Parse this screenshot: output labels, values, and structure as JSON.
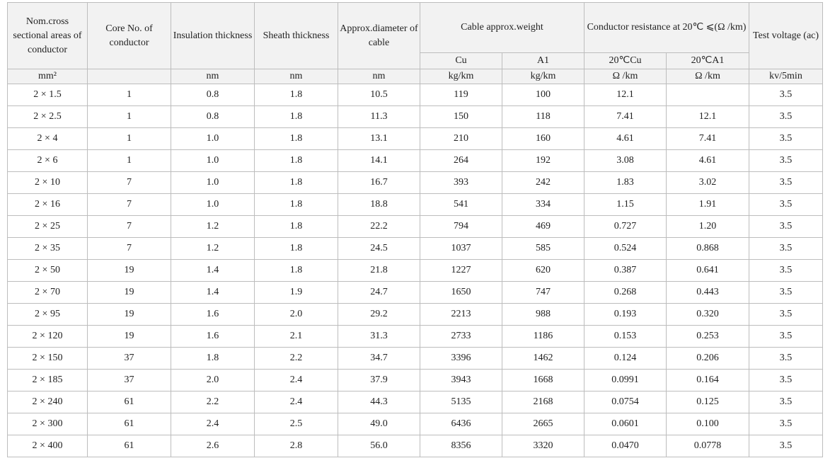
{
  "headers": {
    "size": "Nom.cross sectional areas of conductor",
    "core": "Core No. of conductor",
    "insulation": "Insulation thickness",
    "sheath": "Sheath thickness",
    "diameter": "Approx.diameter of cable",
    "weight": "Cable approx.weight",
    "resistance": "Conductor resistance at 20℃ ⩽(Ω /km)",
    "voltage": "Test voltage (ac)",
    "weight_cu": "Cu",
    "weight_al": "A1",
    "res_cu": "20℃Cu",
    "res_al": "20℃A1"
  },
  "units": {
    "size": "mm²",
    "core": "",
    "insulation": "nm",
    "sheath": "nm",
    "diameter": "nm",
    "weight_cu": "kg/km",
    "weight_al": "kg/km",
    "res_cu": "Ω /km",
    "res_al": "Ω /km",
    "voltage": "kv/5min"
  },
  "rows": [
    {
      "size": "2 × 1.5",
      "core": "1",
      "insulation": "0.8",
      "sheath": "1.8",
      "diameter": "10.5",
      "weight_cu": "119",
      "weight_al": "100",
      "res_cu": "12.1",
      "res_al": "",
      "voltage": "3.5"
    },
    {
      "size": "2 × 2.5",
      "core": "1",
      "insulation": "0.8",
      "sheath": "1.8",
      "diameter": "11.3",
      "weight_cu": "150",
      "weight_al": "118",
      "res_cu": "7.41",
      "res_al": "12.1",
      "voltage": "3.5"
    },
    {
      "size": "2 × 4",
      "core": "1",
      "insulation": "1.0",
      "sheath": "1.8",
      "diameter": "13.1",
      "weight_cu": "210",
      "weight_al": "160",
      "res_cu": "4.61",
      "res_al": "7.41",
      "voltage": "3.5"
    },
    {
      "size": "2 × 6",
      "core": "1",
      "insulation": "1.0",
      "sheath": "1.8",
      "diameter": "14.1",
      "weight_cu": "264",
      "weight_al": "192",
      "res_cu": "3.08",
      "res_al": "4.61",
      "voltage": "3.5"
    },
    {
      "size": "2 × 10",
      "core": "7",
      "insulation": "1.0",
      "sheath": "1.8",
      "diameter": "16.7",
      "weight_cu": "393",
      "weight_al": "242",
      "res_cu": "1.83",
      "res_al": "3.02",
      "voltage": "3.5"
    },
    {
      "size": "2 × 16",
      "core": "7",
      "insulation": "1.0",
      "sheath": "1.8",
      "diameter": "18.8",
      "weight_cu": "541",
      "weight_al": "334",
      "res_cu": "1.15",
      "res_al": "1.91",
      "voltage": "3.5"
    },
    {
      "size": "2 × 25",
      "core": "7",
      "insulation": "1.2",
      "sheath": "1.8",
      "diameter": "22.2",
      "weight_cu": "794",
      "weight_al": "469",
      "res_cu": "0.727",
      "res_al": "1.20",
      "voltage": "3.5"
    },
    {
      "size": "2 × 35",
      "core": "7",
      "insulation": "1.2",
      "sheath": "1.8",
      "diameter": "24.5",
      "weight_cu": "1037",
      "weight_al": "585",
      "res_cu": "0.524",
      "res_al": "0.868",
      "voltage": "3.5"
    },
    {
      "size": "2 × 50",
      "core": "19",
      "insulation": "1.4",
      "sheath": "1.8",
      "diameter": "21.8",
      "weight_cu": "1227",
      "weight_al": "620",
      "res_cu": "0.387",
      "res_al": "0.641",
      "voltage": "3.5"
    },
    {
      "size": "2 × 70",
      "core": "19",
      "insulation": "1.4",
      "sheath": "1.9",
      "diameter": "24.7",
      "weight_cu": "1650",
      "weight_al": "747",
      "res_cu": "0.268",
      "res_al": "0.443",
      "voltage": "3.5"
    },
    {
      "size": "2 × 95",
      "core": "19",
      "insulation": "1.6",
      "sheath": "2.0",
      "diameter": "29.2",
      "weight_cu": "2213",
      "weight_al": "988",
      "res_cu": "0.193",
      "res_al": "0.320",
      "voltage": "3.5"
    },
    {
      "size": "2 × 120",
      "core": "19",
      "insulation": "1.6",
      "sheath": "2.1",
      "diameter": "31.3",
      "weight_cu": "2733",
      "weight_al": "1186",
      "res_cu": "0.153",
      "res_al": "0.253",
      "voltage": "3.5"
    },
    {
      "size": "2 × 150",
      "core": "37",
      "insulation": "1.8",
      "sheath": "2.2",
      "diameter": "34.7",
      "weight_cu": "3396",
      "weight_al": "1462",
      "res_cu": "0.124",
      "res_al": "0.206",
      "voltage": "3.5"
    },
    {
      "size": "2 × 185",
      "core": "37",
      "insulation": "2.0",
      "sheath": "2.4",
      "diameter": "37.9",
      "weight_cu": "3943",
      "weight_al": "1668",
      "res_cu": "0.0991",
      "res_al": "0.164",
      "voltage": "3.5"
    },
    {
      "size": "2 × 240",
      "core": "61",
      "insulation": "2.2",
      "sheath": "2.4",
      "diameter": "44.3",
      "weight_cu": "5135",
      "weight_al": "2168",
      "res_cu": "0.0754",
      "res_al": "0.125",
      "voltage": "3.5"
    },
    {
      "size": "2 × 300",
      "core": "61",
      "insulation": "2.4",
      "sheath": "2.5",
      "diameter": "49.0",
      "weight_cu": "6436",
      "weight_al": "2665",
      "res_cu": "0.0601",
      "res_al": "0.100",
      "voltage": "3.5"
    },
    {
      "size": "2 × 400",
      "core": "61",
      "insulation": "2.6",
      "sheath": "2.8",
      "diameter": "56.0",
      "weight_cu": "8356",
      "weight_al": "3320",
      "res_cu": "0.0470",
      "res_al": "0.0778",
      "voltage": "3.5"
    }
  ]
}
